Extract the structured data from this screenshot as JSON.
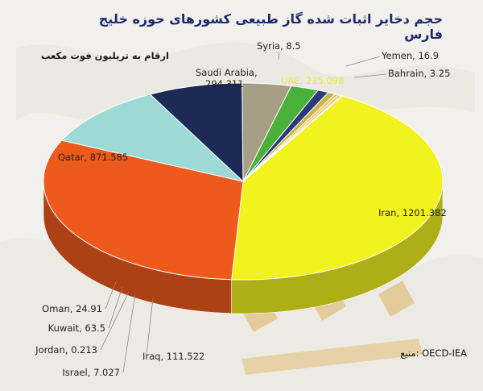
{
  "chart_data": {
    "type": "pie",
    "title": "حجم دخایر اثبات شده گاز طبیعی کشورهای حوزه خلیج فارس",
    "subtitle": "ارقام به تریلیون فوت مکعب",
    "source_label": "منبع:",
    "source_value": "OECD-IEA",
    "categories": [
      "Iran",
      "Qatar",
      "Saudi Arabia",
      "UAE",
      "Iraq",
      "Kuwait",
      "Oman",
      "Yemen",
      "Syria",
      "Israel",
      "Bahrain",
      "Jordan"
    ],
    "values": [
      1201.382,
      871.585,
      294.311,
      215.098,
      111.522,
      63.5,
      24.91,
      16.9,
      8.5,
      7.027,
      3.25,
      0.213
    ],
    "labels": [
      "Iran, 1201.382",
      "Qatar, 871.585",
      "Saudi Arabia, 294.311",
      "UAE, 215.098",
      "Iraq, 111.522",
      "Kuwait, 63.5",
      "Oman, 24.91",
      "Yemen, 16.9",
      "Syria, 8.5",
      "Israel, 7.027",
      "Bahrain, 3.25",
      "Jordan, 0.213"
    ],
    "colors": [
      "#f2f21e",
      "#ee5a1c",
      "#9ddad6",
      "#1c2a55",
      "#a79e86",
      "#4bb03a",
      "#2a3a76",
      "#c9b34a",
      "#f0c34a",
      "#e0c070",
      "#5a8a3a",
      "#c7a94a"
    ],
    "label_colors": [
      "#222222",
      "#222222",
      "#222222",
      "#f2e23a",
      "#222222",
      "#222222",
      "#222222",
      "#222222",
      "#222222",
      "#222222",
      "#222222",
      "#222222"
    ],
    "legend": "none",
    "style": "3d"
  }
}
